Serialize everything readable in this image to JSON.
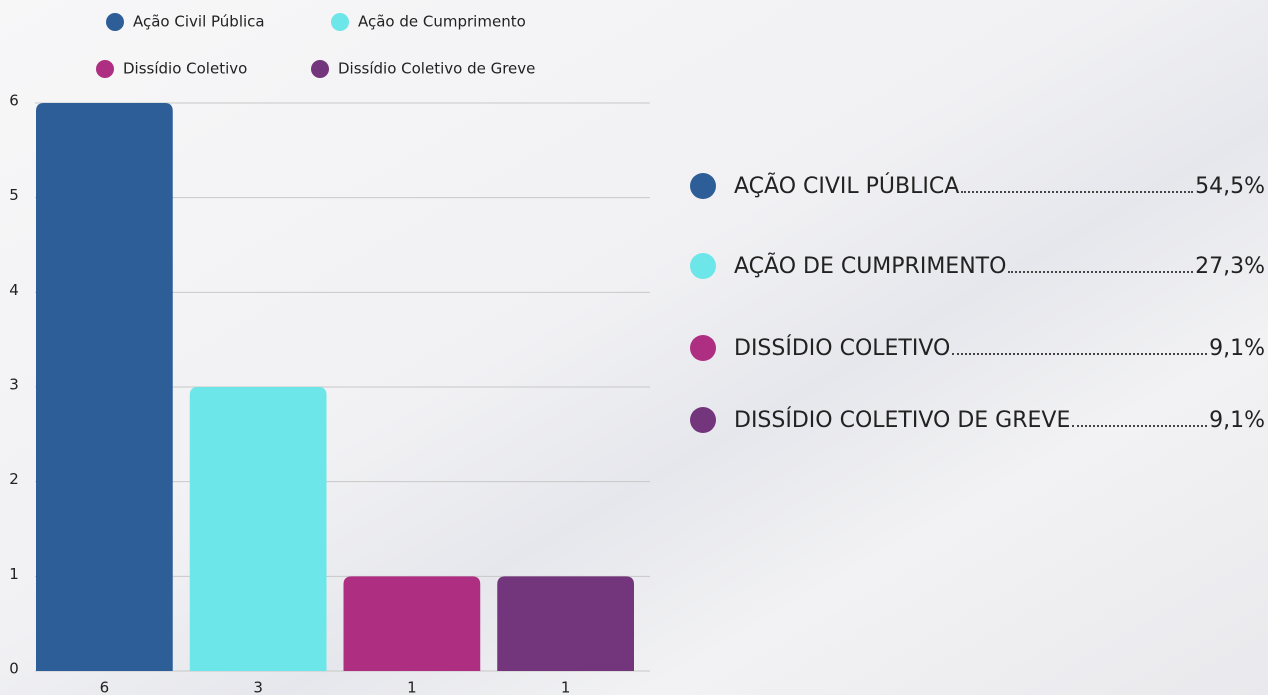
{
  "chart_data": {
    "type": "bar",
    "series_names": [
      "Ação Civil Pública",
      "Ação de Cumprimento",
      "Dissídio Coletivo",
      "Dissídio Coletivo de Greve"
    ],
    "colors": [
      "#2e5e98",
      "#6ce6e8",
      "#ae2e81",
      "#73357b"
    ],
    "values": [
      6,
      3,
      1,
      1
    ],
    "ylim": [
      0,
      6
    ],
    "yticks": [
      0,
      1,
      2,
      3,
      4,
      5,
      6
    ],
    "grid": true
  },
  "shares": {
    "labels": [
      "AÇÃO CIVIL PÚBLICA",
      "AÇÃO DE CUMPRIMENTO",
      "DISSÍDIO COLETIVO",
      "DISSÍDIO COLETIVO DE GREVE"
    ],
    "values": [
      54.5,
      27.3,
      9.1,
      9.1
    ],
    "value_labels": [
      "54,5%",
      "27,3%",
      "9,1%",
      "9,1%"
    ]
  }
}
